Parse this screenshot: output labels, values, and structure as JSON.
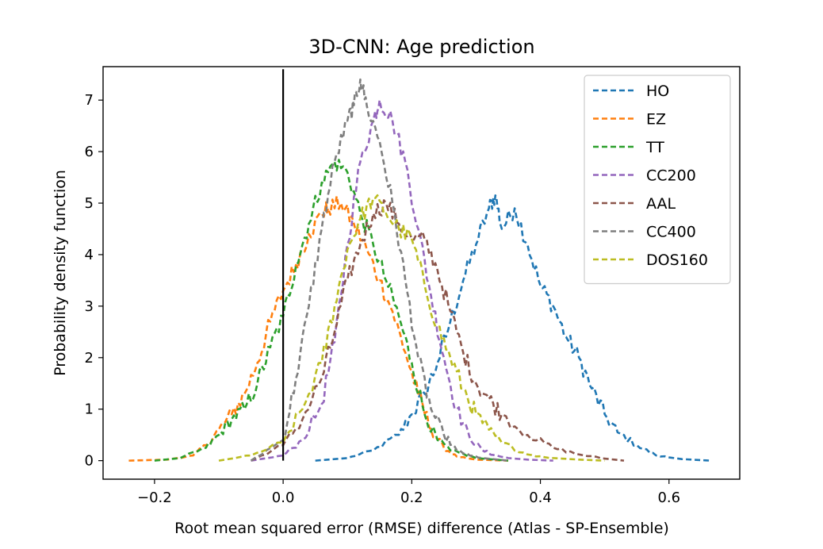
{
  "chart_data": {
    "type": "line",
    "title": "3D-CNN: Age prediction",
    "xlabel": "Root mean squared error (RMSE) difference (Atlas - SP-Ensemble)",
    "ylabel": "Probability density function",
    "xlim": [
      -0.28,
      0.71
    ],
    "ylim": [
      -0.36,
      7.65
    ],
    "xticks": [
      -0.2,
      0.0,
      0.2,
      0.4,
      0.6
    ],
    "xtick_labels": [
      "−0.2",
      "0.0",
      "0.2",
      "0.4",
      "0.6"
    ],
    "yticks": [
      0,
      1,
      2,
      3,
      4,
      5,
      6,
      7
    ],
    "ytick_labels": [
      "0",
      "1",
      "2",
      "3",
      "4",
      "5",
      "6",
      "7"
    ],
    "grid": false,
    "legend_position": "top-right",
    "vertical_reference_line": {
      "x": 0.0,
      "y_range": [
        0,
        7.6
      ],
      "color": "#000000"
    },
    "series": [
      {
        "name": "HO",
        "color": "#1f77b4",
        "style": "dashed",
        "x": [
          0.05,
          0.1,
          0.14,
          0.18,
          0.2,
          0.22,
          0.24,
          0.26,
          0.28,
          0.3,
          0.32,
          0.33,
          0.34,
          0.36,
          0.38,
          0.4,
          0.42,
          0.44,
          0.46,
          0.48,
          0.5,
          0.52,
          0.55,
          0.58,
          0.62,
          0.665
        ],
        "y": [
          0.0,
          0.05,
          0.2,
          0.5,
          0.9,
          1.3,
          1.9,
          2.7,
          3.5,
          4.2,
          4.9,
          5.15,
          4.5,
          4.9,
          4.2,
          3.4,
          3.0,
          2.4,
          2.0,
          1.4,
          0.9,
          0.55,
          0.3,
          0.1,
          0.03,
          0.0
        ]
      },
      {
        "name": "EZ",
        "color": "#ff7f0e",
        "style": "dashed",
        "x": [
          -0.24,
          -0.18,
          -0.14,
          -0.12,
          -0.1,
          -0.08,
          -0.06,
          -0.04,
          -0.02,
          0.0,
          0.02,
          0.04,
          0.06,
          0.07,
          0.09,
          0.11,
          0.13,
          0.15,
          0.17,
          0.19,
          0.21,
          0.23,
          0.25,
          0.27,
          0.3,
          0.35
        ],
        "y": [
          0.0,
          0.02,
          0.1,
          0.3,
          0.6,
          0.9,
          1.3,
          1.9,
          2.7,
          3.3,
          3.8,
          4.4,
          4.8,
          4.9,
          5.0,
          4.6,
          4.1,
          3.5,
          2.9,
          2.1,
          1.3,
          0.6,
          0.25,
          0.08,
          0.02,
          0.0
        ]
      },
      {
        "name": "TT",
        "color": "#2ca02c",
        "style": "dashed",
        "x": [
          -0.2,
          -0.16,
          -0.12,
          -0.1,
          -0.08,
          -0.06,
          -0.04,
          -0.02,
          0.0,
          0.02,
          0.04,
          0.06,
          0.08,
          0.1,
          0.12,
          0.14,
          0.16,
          0.18,
          0.2,
          0.22,
          0.24,
          0.26,
          0.3,
          0.35
        ],
        "y": [
          0.0,
          0.05,
          0.25,
          0.5,
          0.8,
          1.0,
          1.5,
          2.2,
          2.8,
          3.8,
          4.6,
          5.4,
          5.8,
          5.6,
          4.8,
          4.2,
          3.5,
          2.8,
          1.9,
          0.9,
          0.4,
          0.2,
          0.05,
          0.0
        ]
      },
      {
        "name": "CC200",
        "color": "#9467bd",
        "style": "dashed",
        "x": [
          -0.05,
          0.0,
          0.03,
          0.06,
          0.08,
          0.1,
          0.12,
          0.14,
          0.15,
          0.17,
          0.19,
          0.21,
          0.23,
          0.25,
          0.27,
          0.29,
          0.31,
          0.33,
          0.35,
          0.38,
          0.42
        ],
        "y": [
          0.0,
          0.1,
          0.4,
          1.1,
          2.3,
          4.2,
          5.8,
          6.6,
          7.0,
          6.6,
          5.8,
          4.5,
          3.2,
          2.0,
          1.0,
          0.45,
          0.2,
          0.1,
          0.05,
          0.02,
          0.0
        ]
      },
      {
        "name": "AAL",
        "color": "#8c564b",
        "style": "dashed",
        "x": [
          -0.05,
          0.0,
          0.03,
          0.06,
          0.08,
          0.1,
          0.12,
          0.14,
          0.16,
          0.18,
          0.2,
          0.22,
          0.24,
          0.26,
          0.28,
          0.3,
          0.32,
          0.34,
          0.38,
          0.42,
          0.46,
          0.5,
          0.53
        ],
        "y": [
          0.0,
          0.3,
          0.8,
          1.6,
          2.5,
          3.5,
          4.2,
          4.8,
          5.0,
          4.6,
          4.3,
          4.3,
          3.7,
          2.9,
          2.1,
          1.5,
          1.2,
          0.9,
          0.5,
          0.25,
          0.12,
          0.04,
          0.0
        ]
      },
      {
        "name": "CC400",
        "color": "#7f7f7f",
        "style": "dashed",
        "x": [
          -0.05,
          0.0,
          0.02,
          0.04,
          0.06,
          0.08,
          0.1,
          0.11,
          0.12,
          0.13,
          0.15,
          0.17,
          0.19,
          0.21,
          0.23,
          0.25,
          0.27,
          0.29,
          0.31,
          0.35
        ],
        "y": [
          0.0,
          0.4,
          1.6,
          3.0,
          4.5,
          5.8,
          6.6,
          6.9,
          7.4,
          6.9,
          6.2,
          5.0,
          3.5,
          2.0,
          1.0,
          0.5,
          0.2,
          0.1,
          0.05,
          0.0
        ]
      },
      {
        "name": "DOS160",
        "color": "#bcbd22",
        "style": "dashed",
        "x": [
          -0.1,
          -0.05,
          0.0,
          0.03,
          0.06,
          0.08,
          0.1,
          0.12,
          0.14,
          0.16,
          0.18,
          0.2,
          0.22,
          0.24,
          0.26,
          0.28,
          0.3,
          0.32,
          0.34,
          0.38,
          0.42,
          0.46,
          0.5
        ],
        "y": [
          0.0,
          0.1,
          0.35,
          1.0,
          1.9,
          3.0,
          4.1,
          4.7,
          5.1,
          4.8,
          4.5,
          4.3,
          3.4,
          2.6,
          2.0,
          1.4,
          0.9,
          0.6,
          0.35,
          0.12,
          0.05,
          0.02,
          0.0
        ]
      }
    ]
  }
}
